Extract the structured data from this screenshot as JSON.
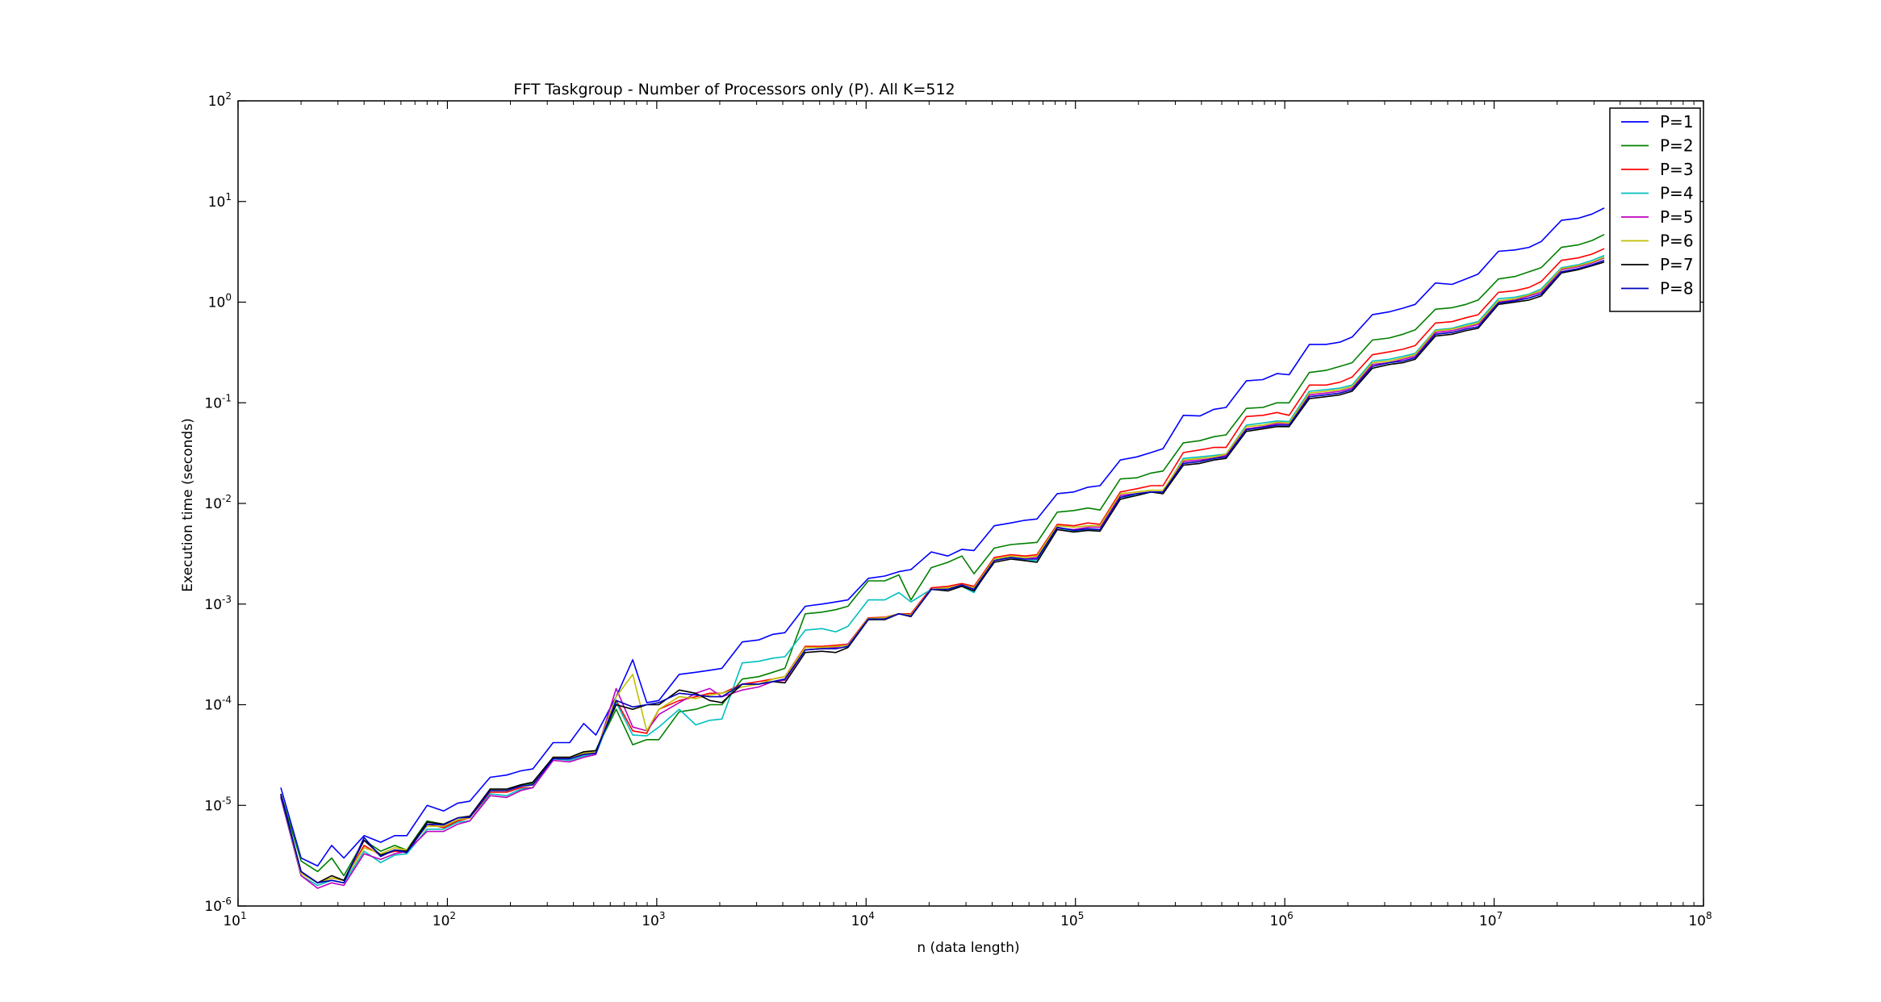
{
  "chart_data": {
    "type": "line",
    "title": "FFT Taskgroup - Number of Processors only (P). All K=512",
    "xlabel": "n (data length)",
    "ylabel": "Execution time (seconds)",
    "xscale": "log",
    "yscale": "log",
    "xlim": [
      10,
      100000000
    ],
    "ylim": [
      1e-06,
      100
    ],
    "x_ticks": [
      {
        "base": "10",
        "exp": "1",
        "value": 10
      },
      {
        "base": "10",
        "exp": "2",
        "value": 100
      },
      {
        "base": "10",
        "exp": "3",
        "value": 1000
      },
      {
        "base": "10",
        "exp": "4",
        "value": 10000
      },
      {
        "base": "10",
        "exp": "5",
        "value": 100000
      },
      {
        "base": "10",
        "exp": "6",
        "value": 1000000
      },
      {
        "base": "10",
        "exp": "7",
        "value": 10000000
      },
      {
        "base": "10",
        "exp": "8",
        "value": 100000000
      }
    ],
    "y_ticks": [
      {
        "base": "10",
        "exp": "-6",
        "value": 1e-06
      },
      {
        "base": "10",
        "exp": "-5",
        "value": 1e-05
      },
      {
        "base": "10",
        "exp": "-4",
        "value": 0.0001
      },
      {
        "base": "10",
        "exp": "-3",
        "value": 0.001
      },
      {
        "base": "10",
        "exp": "-2",
        "value": 0.01
      },
      {
        "base": "10",
        "exp": "-1",
        "value": 0.1
      },
      {
        "base": "10",
        "exp": "0",
        "value": 1
      },
      {
        "base": "10",
        "exp": "1",
        "value": 10
      },
      {
        "base": "10",
        "exp": "2",
        "value": 100
      }
    ],
    "grid": false,
    "legend_position": "top-right",
    "x": [
      16,
      20,
      24,
      28,
      32,
      40,
      48,
      56,
      64,
      80,
      96,
      112,
      128,
      160,
      192,
      224,
      256,
      320,
      384,
      448,
      512,
      640,
      768,
      896,
      1024,
      1280,
      1536,
      1792,
      2048,
      2560,
      3072,
      3584,
      4096,
      5120,
      6144,
      7168,
      8192,
      10240,
      12288,
      14336,
      16384,
      20480,
      24576,
      28672,
      32768,
      40960,
      49152,
      57344,
      65536,
      81920,
      98304,
      114688,
      131072,
      163840,
      196608,
      229376,
      262144,
      327680,
      393216,
      458752,
      524288,
      655360,
      786432,
      917504,
      1048576,
      1310720,
      1572864,
      1835008,
      2097152,
      2621440,
      3145728,
      3670016,
      4194304,
      5242880,
      6291456,
      7340032,
      8388608,
      10485760,
      12582912,
      14680064,
      16777216,
      20971520,
      25165824,
      29360128,
      33554432
    ],
    "series": [
      {
        "name": "P=1",
        "color": "#0000ff",
        "values": [
          1.5e-05,
          3e-06,
          2.5e-06,
          4e-06,
          3e-06,
          5e-06,
          4.3e-06,
          5e-06,
          5e-06,
          1e-05,
          8.8e-06,
          1.05e-05,
          1.1e-05,
          1.9e-05,
          2e-05,
          2.2e-05,
          2.3e-05,
          4.2e-05,
          4.2e-05,
          6.5e-05,
          5e-05,
          0.00012,
          0.00028,
          0.000105,
          0.00011,
          0.0002,
          0.00021,
          0.00022,
          0.00023,
          0.00042,
          0.00044,
          0.0005,
          0.00052,
          0.00095,
          0.001,
          0.00105,
          0.0011,
          0.0018,
          0.0019,
          0.0021,
          0.0022,
          0.0033,
          0.003,
          0.0035,
          0.0034,
          0.006,
          0.0064,
          0.0068,
          0.007,
          0.0125,
          0.013,
          0.0145,
          0.015,
          0.027,
          0.029,
          0.032,
          0.035,
          0.075,
          0.074,
          0.086,
          0.09,
          0.165,
          0.17,
          0.195,
          0.19,
          0.38,
          0.38,
          0.4,
          0.45,
          0.75,
          0.8,
          0.87,
          0.95,
          1.55,
          1.5,
          1.7,
          1.9,
          3.2,
          3.3,
          3.5,
          4,
          6.5,
          6.8,
          7.5,
          8.6
        ]
      },
      {
        "name": "P=2",
        "color": "#008000",
        "values": [
          1.3e-05,
          2.8e-06,
          2.2e-06,
          3e-06,
          2e-06,
          4.5e-06,
          3.5e-06,
          4e-06,
          3.6e-06,
          7e-06,
          6.5e-06,
          7.5e-06,
          7.8e-06,
          1.4e-05,
          1.4e-05,
          1.6e-05,
          1.65e-05,
          3e-05,
          3e-05,
          3.4e-05,
          3.5e-05,
          9e-05,
          4e-05,
          4.5e-05,
          4.5e-05,
          8.5e-05,
          9e-05,
          0.0001,
          0.0001,
          0.00018,
          0.00019,
          0.00021,
          0.00023,
          0.0008,
          0.00083,
          0.00088,
          0.00095,
          0.0017,
          0.0017,
          0.00195,
          0.0011,
          0.0023,
          0.0026,
          0.003,
          0.002,
          0.0036,
          0.0039,
          0.004,
          0.0041,
          0.0082,
          0.0085,
          0.009,
          0.0086,
          0.0175,
          0.018,
          0.02,
          0.021,
          0.04,
          0.042,
          0.046,
          0.048,
          0.088,
          0.09,
          0.1,
          0.1,
          0.2,
          0.21,
          0.23,
          0.25,
          0.42,
          0.44,
          0.48,
          0.53,
          0.85,
          0.88,
          0.95,
          1.05,
          1.7,
          1.8,
          2,
          2.2,
          3.5,
          3.7,
          4.1,
          4.7
        ]
      },
      {
        "name": "P=3",
        "color": "#ff0000",
        "values": [
          1.2e-05,
          2.2e-06,
          1.7e-06,
          1.9e-06,
          1.8e-06,
          4e-06,
          3.2e-06,
          3.5e-06,
          3.4e-06,
          6.5e-06,
          6e-06,
          7e-06,
          7.5e-06,
          1.35e-05,
          1.35e-05,
          1.5e-05,
          1.5e-05,
          2.9e-05,
          2.9e-05,
          3.2e-05,
          3.3e-05,
          0.00011,
          5.5e-05,
          5.2e-05,
          9e-05,
          0.00011,
          0.00012,
          0.00013,
          0.00013,
          0.00016,
          0.00017,
          0.00018,
          0.00019,
          0.00038,
          0.00038,
          0.00039,
          0.0004,
          0.00073,
          0.00074,
          0.0008,
          0.0008,
          0.00145,
          0.0015,
          0.0016,
          0.0015,
          0.0029,
          0.0031,
          0.003,
          0.0031,
          0.0062,
          0.006,
          0.0064,
          0.0062,
          0.013,
          0.014,
          0.015,
          0.015,
          0.032,
          0.034,
          0.036,
          0.036,
          0.073,
          0.075,
          0.08,
          0.075,
          0.15,
          0.15,
          0.16,
          0.18,
          0.3,
          0.32,
          0.34,
          0.37,
          0.62,
          0.64,
          0.7,
          0.75,
          1.25,
          1.3,
          1.4,
          1.6,
          2.6,
          2.75,
          3,
          3.4
        ]
      },
      {
        "name": "P=4",
        "color": "#00bfbf",
        "values": [
          1.2e-05,
          2e-06,
          1.6e-06,
          1.8e-06,
          1.7e-06,
          3.5e-06,
          2.7e-06,
          3.2e-06,
          3.3e-06,
          5.8e-06,
          5.8e-06,
          6.8e-06,
          7e-06,
          1.3e-05,
          1.25e-05,
          1.45e-05,
          1.5e-05,
          2.9e-05,
          2.8e-05,
          3.1e-05,
          3.2e-05,
          0.000105,
          5e-05,
          4.9e-05,
          6e-05,
          9e-05,
          6.3e-05,
          7e-05,
          7.2e-05,
          0.00026,
          0.00027,
          0.00029,
          0.0003,
          0.00055,
          0.00057,
          0.00053,
          0.0006,
          0.0011,
          0.0011,
          0.0013,
          0.00105,
          0.0014,
          0.0014,
          0.0015,
          0.0013,
          0.0028,
          0.0029,
          0.0027,
          0.0027,
          0.0057,
          0.0053,
          0.0055,
          0.0055,
          0.0115,
          0.012,
          0.013,
          0.013,
          0.028,
          0.029,
          0.03,
          0.031,
          0.06,
          0.063,
          0.066,
          0.065,
          0.13,
          0.135,
          0.14,
          0.15,
          0.26,
          0.27,
          0.29,
          0.31,
          0.53,
          0.55,
          0.6,
          0.64,
          1.08,
          1.12,
          1.2,
          1.35,
          2.2,
          2.35,
          2.6,
          2.9
        ]
      },
      {
        "name": "P=5",
        "color": "#bf00bf",
        "values": [
          1.2e-05,
          2e-06,
          1.5e-06,
          1.7e-06,
          1.6e-06,
          3.3e-06,
          2.9e-06,
          3.3e-06,
          3.5e-06,
          5.5e-06,
          5.5e-06,
          6.5e-06,
          7e-06,
          1.25e-05,
          1.2e-05,
          1.4e-05,
          1.5e-05,
          2.8e-05,
          2.7e-05,
          3e-05,
          3.2e-05,
          0.000145,
          6e-05,
          5.5e-05,
          8e-05,
          0.000105,
          0.00013,
          0.000145,
          0.00012,
          0.00014,
          0.00015,
          0.00017,
          0.000175,
          0.00035,
          0.00036,
          0.00037,
          0.0004,
          0.0007,
          0.00072,
          0.0008,
          0.00078,
          0.0014,
          0.0014,
          0.00155,
          0.0014,
          0.0027,
          0.0029,
          0.0028,
          0.0029,
          0.0057,
          0.0055,
          0.0058,
          0.0058,
          0.012,
          0.0125,
          0.013,
          0.013,
          0.026,
          0.027,
          0.028,
          0.03,
          0.055,
          0.058,
          0.062,
          0.062,
          0.12,
          0.125,
          0.13,
          0.14,
          0.24,
          0.25,
          0.27,
          0.29,
          0.5,
          0.52,
          0.56,
          0.6,
          1,
          1.05,
          1.15,
          1.25,
          2.1,
          2.25,
          2.45,
          2.75
        ]
      },
      {
        "name": "P=6",
        "color": "#bfbf00",
        "values": [
          1.25e-05,
          2.1e-06,
          1.7e-06,
          1.9e-06,
          1.8e-06,
          3.8e-06,
          3.3e-06,
          3.8e-06,
          3.6e-06,
          6.2e-06,
          6.2e-06,
          7.2e-06,
          7.5e-06,
          1.45e-05,
          1.4e-05,
          1.55e-05,
          1.6e-05,
          3e-05,
          3e-05,
          3.3e-05,
          3.4e-05,
          0.00012,
          0.0002,
          5.5e-05,
          9e-05,
          0.00012,
          0.000115,
          0.000125,
          0.00013,
          0.00015,
          0.00016,
          0.00018,
          0.00019,
          0.00037,
          0.00037,
          0.00038,
          0.00039,
          0.00072,
          0.00073,
          0.0008,
          0.00078,
          0.0014,
          0.00145,
          0.00155,
          0.00145,
          0.0028,
          0.003,
          0.0029,
          0.003,
          0.006,
          0.0058,
          0.006,
          0.006,
          0.0125,
          0.013,
          0.0135,
          0.0135,
          0.027,
          0.028,
          0.029,
          0.031,
          0.058,
          0.06,
          0.064,
          0.063,
          0.125,
          0.13,
          0.135,
          0.145,
          0.25,
          0.26,
          0.28,
          0.3,
          0.52,
          0.54,
          0.58,
          0.62,
          1.03,
          1.08,
          1.18,
          1.3,
          2.15,
          2.3,
          2.5,
          2.8
        ]
      },
      {
        "name": "P=7",
        "color": "#000000",
        "values": [
          1.3e-05,
          2.2e-06,
          1.7e-06,
          2e-06,
          1.8e-06,
          4.5e-06,
          3.2e-06,
          3.6e-06,
          3.5e-06,
          6.8e-06,
          6.5e-06,
          7.5e-06,
          7.8e-06,
          1.45e-05,
          1.45e-05,
          1.6e-05,
          1.7e-05,
          3e-05,
          3e-05,
          3.4e-05,
          3.5e-05,
          0.0001,
          9e-05,
          0.0001,
          0.0001,
          0.00014,
          0.00013,
          0.00011,
          0.000105,
          0.00016,
          0.00016,
          0.00017,
          0.000165,
          0.00033,
          0.00034,
          0.00033,
          0.00037,
          0.0007,
          0.0007,
          0.0008,
          0.00075,
          0.0014,
          0.00135,
          0.0015,
          0.00135,
          0.0026,
          0.0028,
          0.0027,
          0.0026,
          0.0055,
          0.0052,
          0.0054,
          0.0053,
          0.011,
          0.012,
          0.013,
          0.0125,
          0.024,
          0.025,
          0.027,
          0.028,
          0.052,
          0.055,
          0.058,
          0.058,
          0.11,
          0.115,
          0.12,
          0.13,
          0.22,
          0.24,
          0.25,
          0.27,
          0.46,
          0.48,
          0.52,
          0.55,
          0.95,
          1,
          1.05,
          1.15,
          1.95,
          2.1,
          2.3,
          2.5
        ]
      },
      {
        "name": "P=8",
        "color": "#0000bf",
        "values": [
          1.25e-05,
          2.2e-06,
          1.7e-06,
          1.8e-06,
          1.7e-06,
          4.8e-06,
          3.1e-06,
          3.6e-06,
          3.4e-06,
          6.5e-06,
          6.4e-06,
          7.5e-06,
          7.6e-06,
          1.4e-05,
          1.4e-05,
          1.55e-05,
          1.6e-05,
          2.9e-05,
          2.9e-05,
          3.2e-05,
          3.3e-05,
          0.00011,
          9.5e-05,
          0.0001,
          0.000105,
          0.00013,
          0.000125,
          0.00012,
          0.00012,
          0.00016,
          0.00016,
          0.00017,
          0.00018,
          0.00035,
          0.00036,
          0.00036,
          0.00038,
          0.00071,
          0.00071,
          0.0008,
          0.00076,
          0.0014,
          0.0014,
          0.00155,
          0.0014,
          0.0027,
          0.0029,
          0.0028,
          0.0028,
          0.0058,
          0.0054,
          0.0056,
          0.0055,
          0.0115,
          0.0125,
          0.013,
          0.013,
          0.025,
          0.026,
          0.028,
          0.029,
          0.054,
          0.057,
          0.06,
          0.06,
          0.115,
          0.12,
          0.125,
          0.135,
          0.23,
          0.25,
          0.26,
          0.28,
          0.48,
          0.5,
          0.54,
          0.57,
          0.98,
          1.03,
          1.1,
          1.2,
          2,
          2.15,
          2.35,
          2.6
        ]
      }
    ]
  }
}
